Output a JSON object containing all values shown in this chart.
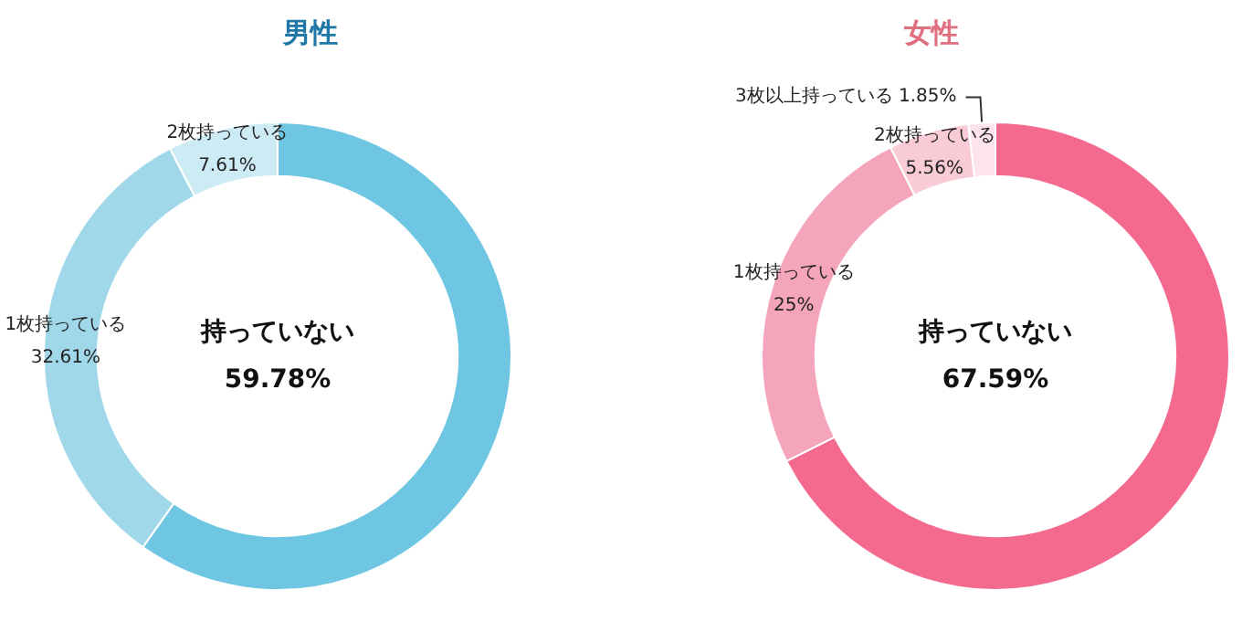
{
  "chart_data": [
    {
      "type": "donut",
      "title": "男性",
      "categories": [
        "持っていない",
        "1枚持っている",
        "2枚持っている"
      ],
      "values": [
        59.78,
        32.61,
        7.61
      ],
      "value_labels": [
        "59.78%",
        "32.61%",
        "7.61%"
      ],
      "colors": [
        "#6ec6e2",
        "#a0d8ea",
        "#cdebf5"
      ]
    },
    {
      "type": "donut",
      "title": "女性",
      "categories": [
        "持っていない",
        "1枚持っている",
        "2枚持っている",
        "3枚以上持っている"
      ],
      "values": [
        67.59,
        25,
        5.56,
        1.85
      ],
      "value_labels": [
        "67.59%",
        "25%",
        "5.56%",
        "1.85%"
      ],
      "colors": [
        "#f46a8f",
        "#f5a5bb",
        "#f9cbd7",
        "#fde4eb"
      ]
    }
  ]
}
